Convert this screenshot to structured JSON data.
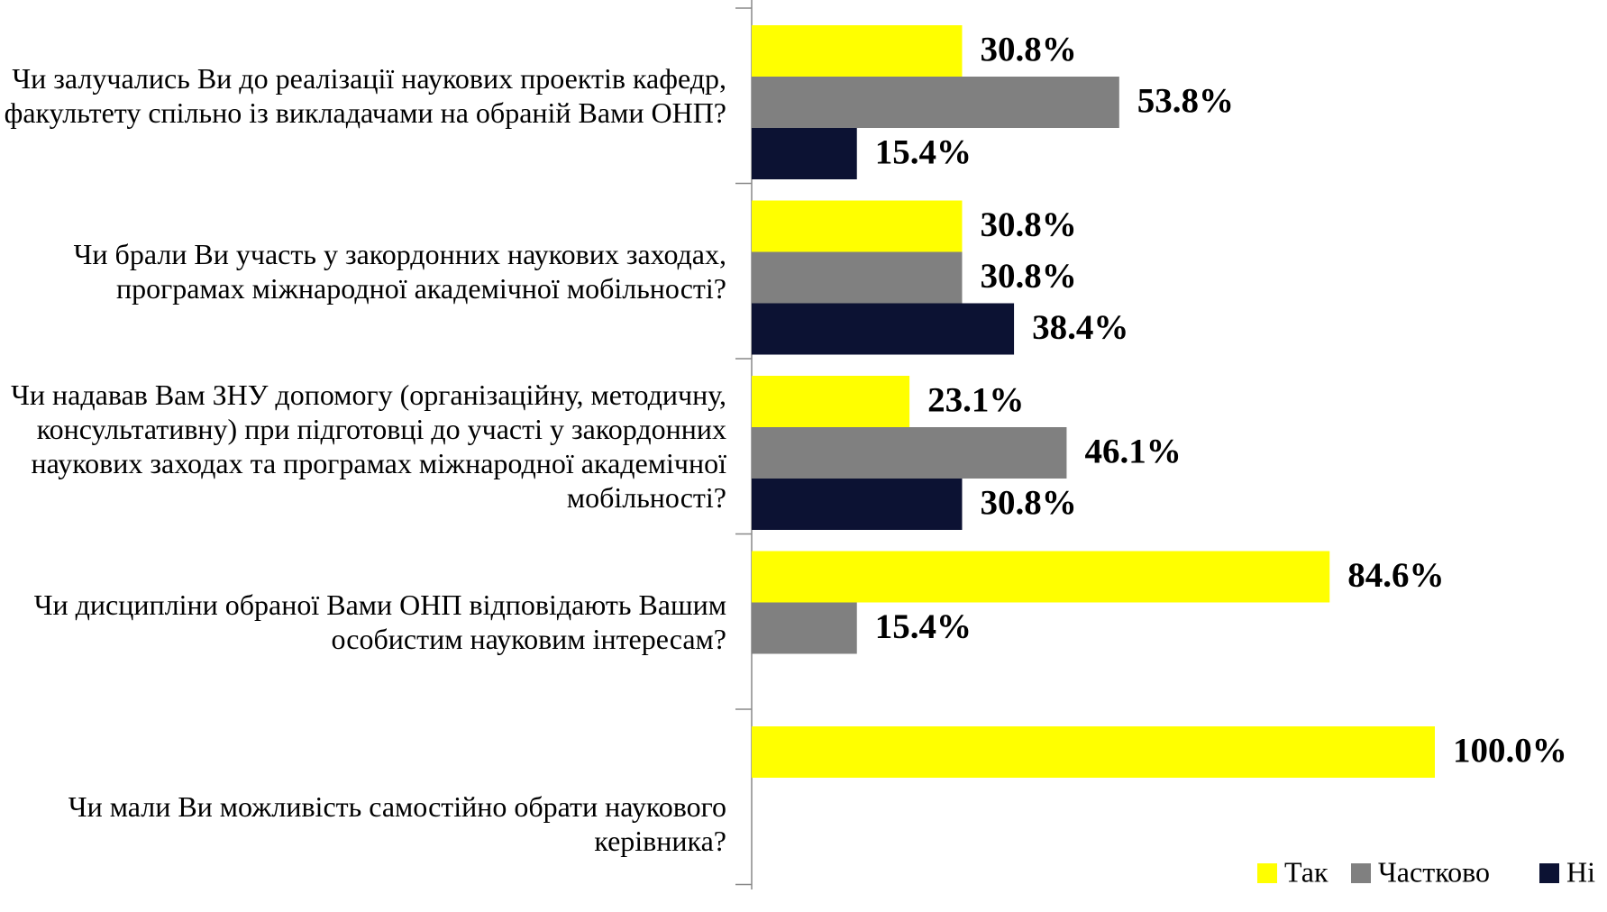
{
  "chart_data": {
    "type": "hbar",
    "categories": [
      "Чи залучались Ви до реалізації наукових проектів кафедр, факультету спільно із викладачами на обраній Вами ОНП?",
      "Чи брали Ви участь у закордонних наукових заходах, програмах міжнародної академічної мобільності?",
      "Чи надавав Вам ЗНУ допомогу (організаційну, методичну, консультативну) при підготовці до участі у закордонних наукових заходах та програмах міжнародної академічної мобільності?",
      "Чи дисципліни обраної Вами ОНП відповідають Вашим особистим науковим інтересам?",
      "Чи мали Ви можливість самостійно обрати наукового керівника?"
    ],
    "series": [
      {
        "name": "Так",
        "color": "#ffff00",
        "values": [
          30.8,
          30.8,
          23.1,
          84.6,
          100.0
        ],
        "value_labels": [
          "30.8%",
          "30.8%",
          "23.1%",
          "84.6%",
          "100.0%"
        ]
      },
      {
        "name": "Частково",
        "color": "#808080",
        "values": [
          53.8,
          30.8,
          46.1,
          15.4,
          null
        ],
        "value_labels": [
          "53.8%",
          "30.8%",
          "46.1%",
          "15.4%",
          null
        ]
      },
      {
        "name": "Ні",
        "color": "#0c1233",
        "values": [
          15.4,
          38.4,
          30.8,
          null,
          null
        ],
        "value_labels": [
          "15.4%",
          "38.4%",
          "30.8%",
          null,
          null
        ]
      }
    ],
    "xlim": [
      0,
      100
    ],
    "legend": "bottom-right"
  }
}
